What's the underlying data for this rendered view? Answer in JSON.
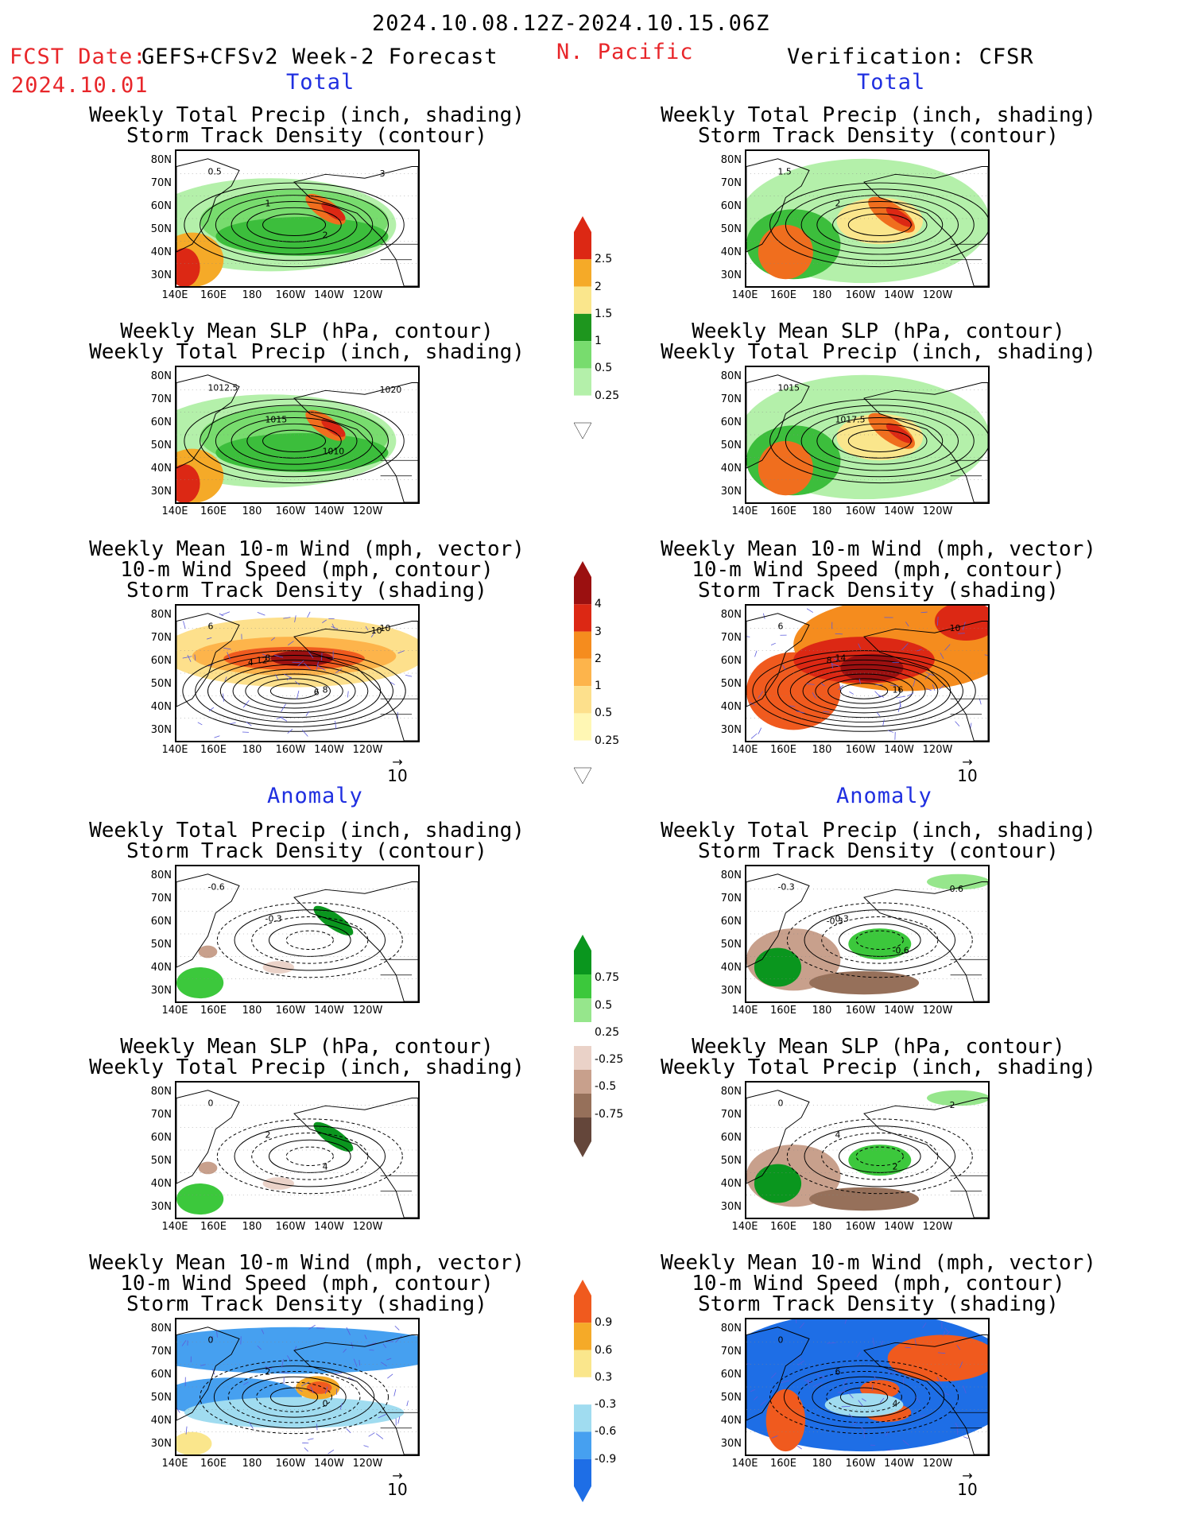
{
  "header": {
    "date_range": "2024.10.08.12Z-2024.10.15.06Z",
    "fcst_label": "FCST Date:",
    "fcst_model": "GEFS+CFSv2 Week-2 Forecast",
    "fcst_date": "2024.10.01",
    "region": "N. Pacific",
    "verification": "Verification: CFSR"
  },
  "sections": {
    "total": "Total",
    "anomaly": "Anomaly"
  },
  "titles": {
    "precip_storm": [
      "Weekly Total Precip (inch, shading)",
      "Storm Track Density (contour)"
    ],
    "slp_precip": [
      "Weekly Mean SLP (hPa, contour)",
      "Weekly Total Precip (inch, shading)"
    ],
    "wind_storm": [
      "Weekly Mean 10-m Wind (mph, vector)",
      "10-m Wind Speed (mph, contour)",
      "Storm Track Density (shading)"
    ]
  },
  "axes": {
    "lat": [
      "80N",
      "70N",
      "60N",
      "50N",
      "40N",
      "30N"
    ],
    "lon": [
      "140E",
      "160E",
      "180",
      "160W",
      "140W",
      "120W"
    ]
  },
  "vector_ref": "10",
  "colorbars": {
    "precip_total": [
      "2.5",
      "2",
      "1.5",
      "1",
      "0.5",
      "0.25"
    ],
    "storm_total": [
      "4",
      "3",
      "2",
      "1",
      "0.5",
      "0.25"
    ],
    "precip_anom": [
      "0.75",
      "0.5",
      "0.25",
      "-0.25",
      "-0.5",
      "-0.75"
    ],
    "storm_anom": [
      "0.9",
      "0.6",
      "0.3",
      "-0.3",
      "-0.6",
      "-0.9"
    ]
  },
  "colors": {
    "precip": [
      "#b4f0aa",
      "#78dc6e",
      "#3cbe3c",
      "#1e961e",
      "#fae68c",
      "#f5aa28",
      "#f06e1e",
      "#dc2814"
    ],
    "storm": [
      "#fff7b4",
      "#fde08c",
      "#fdb44b",
      "#f58c1e",
      "#f05a1e",
      "#dc2814",
      "#9b1010"
    ],
    "anom_pos": [
      "#e6fae0",
      "#96e68c",
      "#3cc83c",
      "#0a961e"
    ],
    "anom_neg": [
      "#ead2c8",
      "#c8a08c",
      "#96705a",
      "#64463a"
    ],
    "storm_anom": [
      "#1e6ee6",
      "#46a0f0",
      "#a0dcf0",
      "#ffffff",
      "#fae68c",
      "#f5aa28",
      "#f05a1e"
    ]
  },
  "contour_labels": {
    "r1c1": [
      "0.5",
      "1",
      "2",
      "3"
    ],
    "r1c2": [
      "1.5",
      "2"
    ],
    "r2c1": [
      "1012.5",
      "1015",
      "1010",
      "1020"
    ],
    "r2c2": [
      "1015",
      "1017.5"
    ],
    "r3c1": [
      "6",
      "8",
      "8",
      "10",
      "12",
      "6",
      "10",
      "4"
    ],
    "r3c2": [
      "6",
      "14",
      "16",
      "10",
      "8"
    ],
    "r4c1": [
      "-0.6",
      "-0.3"
    ],
    "r4c2": [
      "-0.3",
      "0.3",
      "-0.6",
      "0.6",
      "-0.3"
    ],
    "r5c1": [
      "0",
      "2",
      "4"
    ],
    "r5c2": [
      "0",
      "4",
      "2",
      "2"
    ],
    "r6c1": [
      "0",
      "2",
      "0"
    ],
    "r6c2": [
      "0",
      "6",
      "4"
    ]
  }
}
